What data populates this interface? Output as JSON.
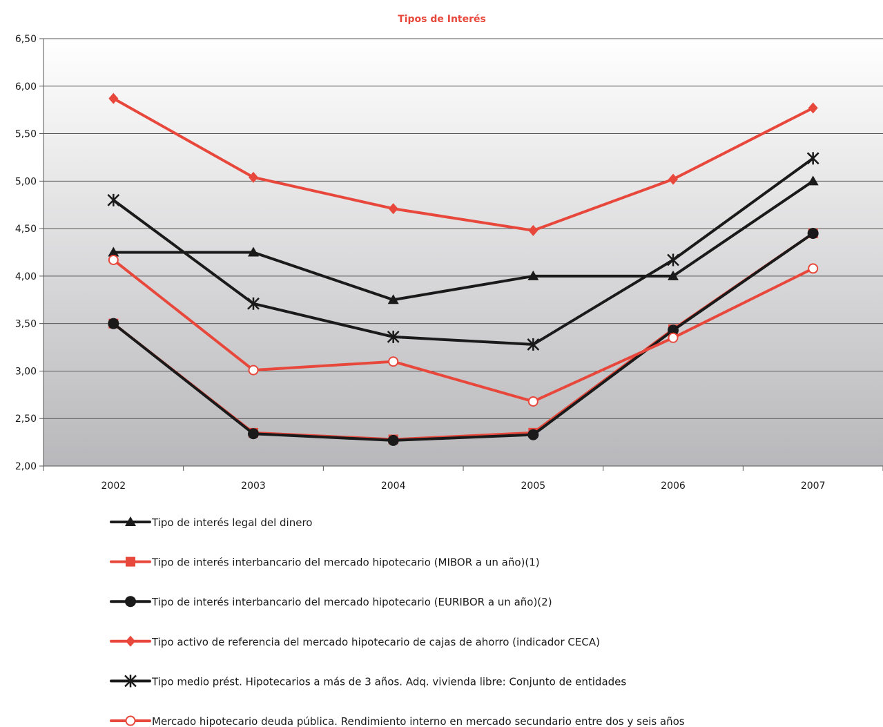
{
  "chart_data": {
    "type": "line",
    "title": "Tipos de Interés",
    "xlabel": "",
    "ylabel": "",
    "categories": [
      "2002",
      "2003",
      "2004",
      "2005",
      "2006",
      "2007"
    ],
    "ylim": [
      2.0,
      6.5
    ],
    "yticks": [
      "2,00",
      "2,50",
      "3,00",
      "3,50",
      "4,00",
      "4,50",
      "5,00",
      "5,50",
      "6,00",
      "6,50"
    ],
    "ytick_values": [
      2.0,
      2.5,
      3.0,
      3.5,
      4.0,
      4.5,
      5.0,
      5.5,
      6.0,
      6.5
    ],
    "grid": true,
    "legend_position": "bottom",
    "series": [
      {
        "name": "Tipo de interés legal del dinero",
        "color": "#1a1a1a",
        "marker": "triangle",
        "values": [
          4.25,
          4.25,
          3.75,
          4.0,
          4.0,
          5.0
        ]
      },
      {
        "name": "Tipo de interés interbancario del mercado hipotecario (MIBOR a un año)(1)",
        "color": "#e8473b",
        "marker": "square",
        "values": [
          3.5,
          2.35,
          2.28,
          2.35,
          3.44,
          4.45
        ]
      },
      {
        "name": "Tipo de interés interbancario del mercado hipotecario (EURIBOR a un año)(2)",
        "color": "#1a1a1a",
        "marker": "circle",
        "values": [
          3.5,
          2.34,
          2.27,
          2.33,
          3.43,
          4.45
        ]
      },
      {
        "name": "Tipo activo de referencia del mercado hipotecario de cajas de ahorro (indicador CECA)",
        "color": "#e8473b",
        "marker": "diamond",
        "values": [
          5.87,
          5.04,
          4.71,
          4.48,
          5.02,
          5.77
        ]
      },
      {
        "name": "Tipo medio prést. Hipotecarios a más de 3 años. Adq. vivienda libre: Conjunto de entidades",
        "color": "#1a1a1a",
        "marker": "star",
        "values": [
          4.8,
          3.71,
          3.36,
          3.28,
          4.17,
          5.24
        ]
      },
      {
        "name": "Mercado hipotecario deuda pública. Rendimiento interno en mercado secundario entre dos y seis años",
        "color": "#e8473b",
        "marker": "open-circle",
        "values": [
          4.17,
          3.01,
          3.1,
          2.68,
          3.35,
          4.08
        ]
      }
    ]
  }
}
